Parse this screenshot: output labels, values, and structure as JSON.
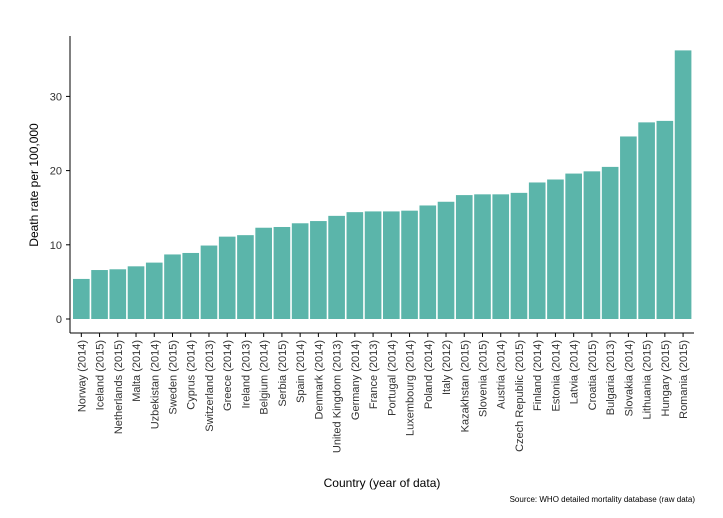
{
  "chart_data": {
    "type": "bar",
    "title": "",
    "xlabel": "Country (year of data)",
    "ylabel": "Death rate per 100,000",
    "ylim": [
      0,
      38
    ],
    "yticks": [
      0,
      10,
      20,
      30
    ],
    "grid": false,
    "legend": "none",
    "bar_color": "#5bb5aa",
    "categories": [
      "Norway (2014)",
      "Iceland (2015)",
      "Netherlands (2015)",
      "Malta (2014)",
      "Uzbekistan (2014)",
      "Sweden (2015)",
      "Cyprus (2014)",
      "Switzerland (2013)",
      "Greece (2014)",
      "Ireland (2013)",
      "Belgium (2014)",
      "Serbia (2015)",
      "Spain (2014)",
      "Denmark (2014)",
      "United Kingdom (2013)",
      "Germany (2014)",
      "France (2013)",
      "Portugal (2014)",
      "Luxembourg (2014)",
      "Poland (2014)",
      "Italy (2012)",
      "Kazakhstan (2015)",
      "Slovenia (2015)",
      "Austria (2014)",
      "Czech Republic (2015)",
      "Finland (2014)",
      "Estonia (2014)",
      "Latvia (2014)",
      "Croatia (2015)",
      "Bulgaria (2013)",
      "Slovakia (2014)",
      "Lithuania (2015)",
      "Hungary (2015)",
      "Romania (2015)"
    ],
    "values": [
      5.4,
      6.6,
      6.7,
      7.1,
      7.6,
      8.7,
      8.9,
      9.9,
      11.1,
      11.3,
      12.3,
      12.4,
      12.9,
      13.2,
      13.9,
      14.4,
      14.5,
      14.5,
      14.6,
      15.3,
      15.8,
      16.7,
      16.8,
      16.8,
      17.0,
      18.4,
      18.8,
      19.6,
      19.9,
      20.5,
      24.6,
      26.5,
      26.7,
      36.2
    ]
  },
  "source": "Source: WHO detailed mortality database (raw data)"
}
